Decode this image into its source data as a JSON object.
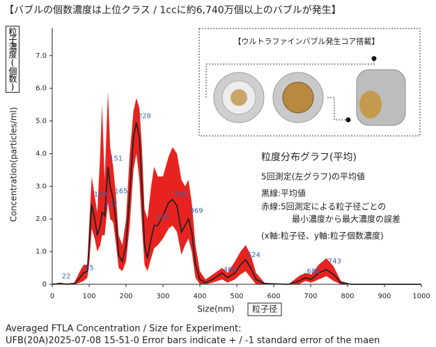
{
  "chart_data": {
    "type": "band-line",
    "title": "【バブルの個数濃度は上位クラス / 1ccに約6,740万個以上のバブルが発生】",
    "y_label": "Concentration(particles/ml)",
    "y_label_box": "粒子濃度(個数)",
    "x_label": "Size(nm)",
    "x_label_box": "粒子径",
    "footer": [
      "Averaged FTLA Concentration / Size for Experiment:",
      "UFB(20A)2025-07-08 15-51-0 Error bars indicate + / -1 standard error of the maen"
    ],
    "inset_title": "【ウルトラファインバブル発生コア搭載】",
    "notes": [
      "粒度分布グラフ(平均)",
      "5回測定(左グラフ)の平均値",
      "黒線:平均値",
      "赤線:5回測定による粒子径ごとの",
      "最小濃度から最大濃度の誤差",
      "(x軸:粒子径、y軸:粒子個数濃度)"
    ],
    "line_color": "#222222",
    "band_color": "#e8231f",
    "x": [
      0,
      20,
      40,
      60,
      75,
      85,
      95,
      100,
      107,
      115,
      122,
      130,
      135,
      142,
      151,
      157,
      165,
      172,
      180,
      190,
      200,
      210,
      220,
      228,
      236,
      243,
      250,
      258,
      268,
      276,
      286,
      300,
      315,
      326,
      338,
      350,
      360,
      369,
      378,
      388,
      400,
      415,
      435,
      460,
      475,
      495,
      510,
      524,
      538,
      552,
      575,
      640,
      668,
      686,
      702,
      722,
      743,
      762,
      782,
      810,
      1000
    ],
    "values": [
      0,
      0.02,
      0,
      0.02,
      0.2,
      0.35,
      0.4,
      1.2,
      2.45,
      2.0,
      1.5,
      1.8,
      2.2,
      2.1,
      3.6,
      3.0,
      2.6,
      2.0,
      0.9,
      0.7,
      1.2,
      2.8,
      4.5,
      4.95,
      4.5,
      3.0,
      1.2,
      0.8,
      1.4,
      1.8,
      1.8,
      2.1,
      2.5,
      2.6,
      2.4,
      1.6,
      1.8,
      2.0,
      1.6,
      0.6,
      0.15,
      0.05,
      0.15,
      0.35,
      0.2,
      0.35,
      0.6,
      0.75,
      0.5,
      0.15,
      0.02,
      0,
      0.1,
      0.2,
      0.15,
      0.35,
      0.45,
      0.3,
      0.05,
      0,
      0
    ],
    "band_low": [
      0,
      0,
      0,
      0,
      0.05,
      0.1,
      0.2,
      0.6,
      1.7,
      1.4,
      1.0,
      1.2,
      1.5,
      1.5,
      2.5,
      2.0,
      1.9,
      1.3,
      0.5,
      0.4,
      0.7,
      1.8,
      3.5,
      4.0,
      3.2,
      1.8,
      0.6,
      0.4,
      0.8,
      1.1,
      1.2,
      1.4,
      1.7,
      1.8,
      1.6,
      0.9,
      1.2,
      1.4,
      1.0,
      0.2,
      0,
      0,
      0.05,
      0.15,
      0.05,
      0.15,
      0.3,
      0.4,
      0.2,
      0,
      0,
      0,
      0,
      0.1,
      0.05,
      0.15,
      0.25,
      0.1,
      0,
      0,
      0
    ],
    "band_high": [
      0,
      0.05,
      0.02,
      0.05,
      0.4,
      0.6,
      0.6,
      1.8,
      3.3,
      2.7,
      2.2,
      4.0,
      5.5,
      3.2,
      5.9,
      4.2,
      3.6,
      2.8,
      1.5,
      1.2,
      2.0,
      4.0,
      5.3,
      5.7,
      5.4,
      4.2,
      2.3,
      2.0,
      3.0,
      3.6,
      3.3,
      3.3,
      3.9,
      4.2,
      4.0,
      3.2,
      3.0,
      3.2,
      2.5,
      1.2,
      0.4,
      0.15,
      0.3,
      0.5,
      0.35,
      0.7,
      1.0,
      1.2,
      0.9,
      0.35,
      0.05,
      0,
      0.25,
      0.35,
      0.3,
      0.6,
      0.8,
      0.55,
      0.1,
      0,
      0
    ],
    "peaks": [
      {
        "x": 22,
        "y": 0.1
      },
      {
        "x": 85,
        "y": 0.35
      },
      {
        "x": 109,
        "y": 2.6
      },
      {
        "x": 137,
        "y": 2.3
      },
      {
        "x": 151,
        "y": 3.7
      },
      {
        "x": 165,
        "y": 2.7
      },
      {
        "x": 228,
        "y": 5.0
      },
      {
        "x": 276,
        "y": 1.9
      },
      {
        "x": 326,
        "y": 2.6
      },
      {
        "x": 369,
        "y": 2.1
      },
      {
        "x": 460,
        "y": 0.3
      },
      {
        "x": 524,
        "y": 0.75
      },
      {
        "x": 686,
        "y": 0.25
      },
      {
        "x": 743,
        "y": 0.55
      }
    ],
    "peak_color": "#3a5fb0",
    "xlim": [
      0,
      1000
    ],
    "xticks": [
      0,
      100,
      200,
      300,
      400,
      500,
      600,
      700,
      800,
      900,
      1000
    ],
    "ylim": [
      0,
      7.85
    ],
    "yticks": [
      0,
      {
        "value": 1,
        "label": "1.0"
      },
      {
        "value": 2,
        "label": "2.0"
      },
      {
        "value": 3,
        "label": "3.0"
      },
      {
        "value": 4,
        "label": "4.0"
      },
      {
        "value": 5,
        "label": "5.0"
      },
      {
        "value": 6,
        "label": "6.0"
      },
      {
        "value": 7,
        "label": "7.0"
      }
    ]
  }
}
